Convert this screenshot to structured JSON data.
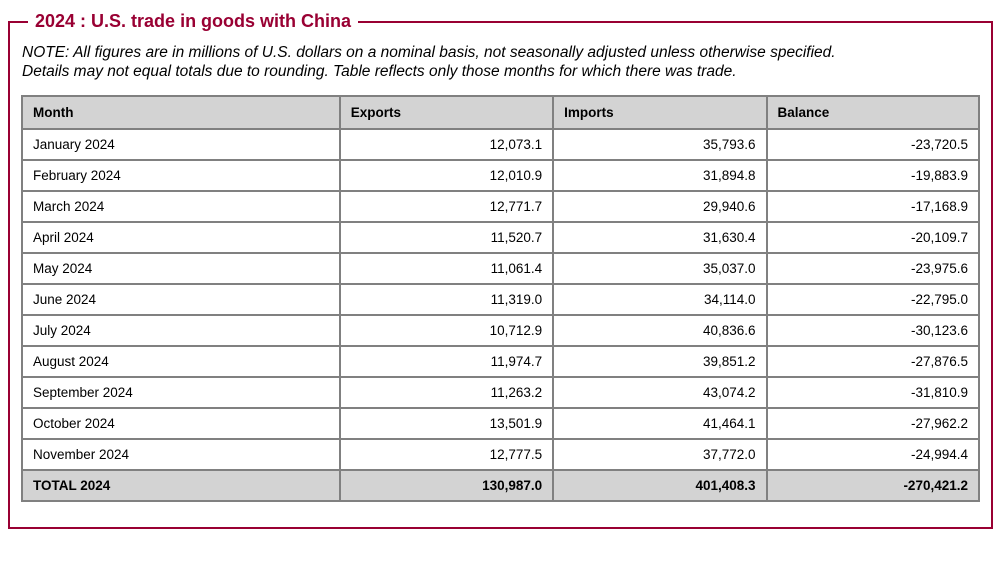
{
  "colors": {
    "accent_maroon": "#990033",
    "header_bg": "#d3d3d3",
    "table_border_gray": "#808080",
    "page_bg": "#ffffff"
  },
  "title": "2024 : U.S. trade in goods with China",
  "note_lines": [
    "NOTE: All figures are in millions of U.S. dollars on a nominal basis, not seasonally adjusted unless otherwise specified.",
    "Details may not equal totals due to rounding. Table reflects only those months for which there was trade."
  ],
  "chart_data": {
    "type": "table",
    "title": "2024 : U.S. trade in goods with China",
    "units": "millions of U.S. dollars, nominal basis, not seasonally adjusted",
    "columns": [
      "Month",
      "Exports",
      "Imports",
      "Balance"
    ],
    "rows": [
      [
        "January 2024",
        "12,073.1",
        "35,793.6",
        "-23,720.5"
      ],
      [
        "February 2024",
        "12,010.9",
        "31,894.8",
        "-19,883.9"
      ],
      [
        "March 2024",
        "12,771.7",
        "29,940.6",
        "-17,168.9"
      ],
      [
        "April 2024",
        "11,520.7",
        "31,630.4",
        "-20,109.7"
      ],
      [
        "May 2024",
        "11,061.4",
        "35,037.0",
        "-23,975.6"
      ],
      [
        "June 2024",
        "11,319.0",
        "34,114.0",
        "-22,795.0"
      ],
      [
        "July 2024",
        "10,712.9",
        "40,836.6",
        "-30,123.6"
      ],
      [
        "August 2024",
        "11,974.7",
        "39,851.2",
        "-27,876.5"
      ],
      [
        "September 2024",
        "11,263.2",
        "43,074.2",
        "-31,810.9"
      ],
      [
        "October 2024",
        "13,501.9",
        "41,464.1",
        "-27,962.2"
      ],
      [
        "November 2024",
        "12,777.5",
        "37,772.0",
        "-24,994.4"
      ]
    ],
    "total_row": [
      "TOTAL 2024",
      "130,987.0",
      "401,408.3",
      "-270,421.2"
    ],
    "rows_numeric": {
      "exports": [
        12073.1,
        12010.9,
        12771.7,
        11520.7,
        11061.4,
        11319.0,
        10712.9,
        11974.7,
        11263.2,
        13501.9,
        12777.5
      ],
      "imports": [
        35793.6,
        31894.8,
        29940.6,
        31630.4,
        35037.0,
        34114.0,
        40836.6,
        39851.2,
        43074.2,
        41464.1,
        37772.0
      ],
      "balance": [
        -23720.5,
        -19883.9,
        -17168.9,
        -20109.7,
        -23975.6,
        -22795.0,
        -30123.6,
        -27876.5,
        -31810.9,
        -27962.2,
        -24994.4
      ],
      "totals": {
        "exports": 130987.0,
        "imports": 401408.3,
        "balance": -270421.2
      }
    }
  }
}
